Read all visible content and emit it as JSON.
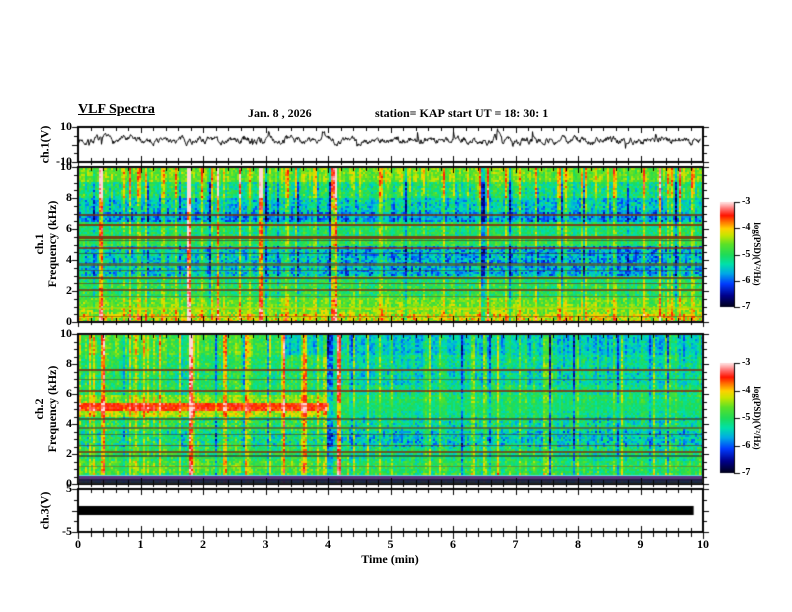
{
  "title": "VLF Spectra",
  "header": {
    "date": "Jan. 8 , 2026",
    "station": "station= KAP",
    "start_ut": "start UT =   18: 30: 1"
  },
  "axes": {
    "x": {
      "label": "Time (min)",
      "min": 0,
      "max": 10,
      "tick_labels": [
        "0",
        "1",
        "2",
        "3",
        "4",
        "5",
        "6",
        "7",
        "8",
        "9",
        "10"
      ],
      "minor_step": 0.2
    }
  },
  "panels": {
    "wave": {
      "ylabel": "ch.1(V)",
      "ymin": -10,
      "ymax": 10,
      "tick_values": [
        10,
        -10
      ],
      "tick_labels": [
        "10",
        "-10"
      ]
    },
    "sp1": {
      "ylabel1": "ch.1",
      "ylabel2": "Frequency (kHz)",
      "ymin": 0,
      "ymax": 10,
      "tick_values": [
        10,
        8,
        6,
        4,
        2,
        0
      ],
      "tick_labels": [
        "10",
        "8",
        "6",
        "4",
        "2",
        "0"
      ]
    },
    "sp2": {
      "ylabel1": "ch.2",
      "ylabel2": "Frequency (kHz)",
      "ymin": 0,
      "ymax": 10,
      "tick_values": [
        10,
        8,
        6,
        4,
        2,
        0
      ],
      "tick_labels": [
        "10",
        "8",
        "6",
        "4",
        "2",
        "0"
      ]
    },
    "ch3": {
      "ylabel": "ch.3(V)",
      "ymin": -5,
      "ymax": 5,
      "tick_values": [
        5,
        -5
      ],
      "tick_labels": [
        "5",
        "-5"
      ]
    }
  },
  "colorbar": {
    "label": "log(PSD)(V²/Hz)",
    "tick_labels": [
      "-3",
      "-4",
      "-5",
      "-6",
      "-7"
    ],
    "vmax": -3,
    "vmin": -7
  },
  "colormap": [
    [
      -7.0,
      "#000014"
    ],
    [
      -6.55,
      "#00008c"
    ],
    [
      -6.1,
      "#003cff"
    ],
    [
      -5.7,
      "#00aae6"
    ],
    [
      -5.35,
      "#00e1aa"
    ],
    [
      -5.0,
      "#1edc5a"
    ],
    [
      -4.6,
      "#5ae128"
    ],
    [
      -4.25,
      "#c8e600"
    ],
    [
      -4.0,
      "#ffd200"
    ],
    [
      -3.75,
      "#ff7800"
    ],
    [
      -3.5,
      "#ff1400"
    ],
    [
      -3.25,
      "#ff6e6e"
    ],
    [
      -3.0,
      "#ffe1e1"
    ]
  ],
  "chart_data": [
    {
      "type": "line",
      "name": "ch1_voltage_waveform",
      "xlabel": "Time (min)",
      "xlim": [
        0,
        10
      ],
      "ylim": [
        -10,
        10
      ],
      "description": "Noisy broadband voltage trace, mean near +2.4 V, excursions roughly -2 to +8 V",
      "gen": {
        "mean": 2.4,
        "noise": 1.7,
        "spike_prob": 0.025,
        "seed": 7
      }
    },
    {
      "type": "heatmap",
      "name": "ch1_spectrogram",
      "xlim": [
        0,
        10
      ],
      "ylim": [
        0,
        10
      ],
      "zlim": [
        -7,
        -3
      ],
      "ylabel": "Frequency (kHz)",
      "zlabel": "log(PSD)(V²/Hz)",
      "seed": 11,
      "bands": [
        {
          "f0": 9.1,
          "f1": 10.0,
          "b": -4.55,
          "cj": 0.28,
          "cs": 1.1
        },
        {
          "f0": 8.0,
          "f1": 9.1,
          "b": -5.05,
          "cj": 0.4,
          "cs": 1.5
        },
        {
          "f0": 7.15,
          "f1": 8.0,
          "b": -5.45,
          "cj": 0.45,
          "cs": 1.2
        },
        {
          "f0": 6.45,
          "f1": 7.15,
          "b": -5.8,
          "cj": 0.45,
          "cs": 1.0
        },
        {
          "f0": 5.6,
          "f1": 6.45,
          "b": -5.05,
          "cj": 0.35,
          "cs": 0.9
        },
        {
          "f0": 4.95,
          "f1": 5.6,
          "b": -4.9,
          "cj": 0.3,
          "cs": 0.8
        },
        {
          "f0": 4.0,
          "f1": 4.95,
          "b": -5.45,
          "cj": 0.5,
          "cs": 0.9,
          "b2": -5.7,
          "ts": 3.9
        },
        {
          "f0": 3.0,
          "f1": 4.0,
          "b": -5.5,
          "cj": 0.5,
          "cs": 0.9,
          "b2": -5.7,
          "ts": 3.9
        },
        {
          "f0": 2.4,
          "f1": 3.0,
          "b": -5.05,
          "cj": 0.4,
          "cs": 0.8
        },
        {
          "f0": 1.5,
          "f1": 2.4,
          "b": -4.95,
          "cj": 0.38,
          "cs": 0.8
        },
        {
          "f0": 0.9,
          "f1": 1.5,
          "b": -4.6,
          "cj": 0.33,
          "cs": 0.7
        },
        {
          "f0": 0.5,
          "f1": 0.9,
          "b": -4.45,
          "cj": 0.38,
          "cs": 0.7
        },
        {
          "f0": 0.0,
          "f1": 0.5,
          "b": -4.25,
          "cj": 0.55,
          "cs": 0.8
        }
      ],
      "hlines": [
        {
          "f": 6.95,
          "h": 2,
          "c": "#703818",
          "a": 0.85
        },
        {
          "f": 6.25,
          "h": 2,
          "c": "#8a2808",
          "a": 0.85
        },
        {
          "f": 5.5,
          "h": 3,
          "c": "#7a3410",
          "a": 0.9
        },
        {
          "f": 5.28,
          "h": 1,
          "c": "#45452a",
          "a": 0.7
        },
        {
          "f": 4.78,
          "h": 2,
          "c": "#8a2808",
          "a": 0.8
        },
        {
          "f": 4.42,
          "h": 1,
          "c": "#333333",
          "a": 0.6
        },
        {
          "f": 3.72,
          "h": 3,
          "c": "#5a5a28",
          "a": 0.75
        },
        {
          "f": 3.35,
          "h": 1,
          "c": "#3c3c3c",
          "a": 0.6
        },
        {
          "f": 2.82,
          "h": 2,
          "c": "#6a3010",
          "a": 0.8
        },
        {
          "f": 2.5,
          "h": 1,
          "c": "#703818",
          "a": 0.7
        },
        {
          "f": 2.05,
          "h": 2,
          "c": "#7a3410",
          "a": 0.8
        },
        {
          "f": 1.62,
          "h": 1,
          "c": "#66601f",
          "a": 0.6
        },
        {
          "f": 0.85,
          "h": 2,
          "c": "#b8d800",
          "a": 0.65
        },
        {
          "f": 0.32,
          "h": 1,
          "c": "#8a4808",
          "a": 0.6
        }
      ],
      "streaks": [
        {
          "t": 0.33,
          "w": 2,
          "dv": 1.6
        },
        {
          "t": 1.72,
          "w": 2,
          "dv": 1.8
        },
        {
          "t": 2.87,
          "w": 2,
          "dv": 1.5
        },
        {
          "t": 4.06,
          "w": 2,
          "dv": 1.7
        },
        {
          "t": 9.62,
          "w": 1,
          "dv": 1.2
        },
        {
          "t": 0.95,
          "w": 1,
          "dv": 0.7
        },
        {
          "t": 1.3,
          "w": 1,
          "dv": 0.6
        },
        {
          "t": 2.2,
          "w": 1,
          "dv": 0.7
        },
        {
          "t": 2.55,
          "w": 1,
          "dv": 0.6
        },
        {
          "t": 3.3,
          "w": 1,
          "dv": 0.8
        },
        {
          "t": 3.75,
          "w": 1,
          "dv": 0.6
        },
        {
          "t": 4.5,
          "w": 1,
          "dv": 0.55
        },
        {
          "t": 5.3,
          "w": 1,
          "dv": 0.6
        },
        {
          "t": 6.0,
          "w": 1,
          "dv": 0.5
        },
        {
          "t": 6.55,
          "w": 1,
          "dv": 0.7
        },
        {
          "t": 7.3,
          "w": 1,
          "dv": 0.55
        },
        {
          "t": 8.05,
          "w": 1,
          "dv": 0.6
        },
        {
          "t": 8.6,
          "w": 1,
          "dv": 0.5
        },
        {
          "t": 9.3,
          "w": 1,
          "dv": 0.6
        }
      ]
    },
    {
      "type": "heatmap",
      "name": "ch2_spectrogram",
      "xlim": [
        0,
        10
      ],
      "ylim": [
        0,
        10
      ],
      "zlim": [
        -7,
        -3
      ],
      "ylabel": "Frequency (kHz)",
      "zlabel": "log(PSD)(V²/Hz)",
      "event": {
        "t_end": 4.0,
        "description": "strong red emission band near 5 kHz present from 0 to ~4 min, then stops"
      },
      "seed": 23,
      "bands": [
        {
          "f0": 8.6,
          "f1": 10.0,
          "b": -4.8,
          "cj": 0.3,
          "cs": 1.1,
          "b2": -5.5,
          "ts": 3.3
        },
        {
          "f0": 7.8,
          "f1": 8.6,
          "b": -5.0,
          "cj": 0.35,
          "cs": 1.0,
          "b2": -5.3,
          "ts": 4.0
        },
        {
          "f0": 6.6,
          "f1": 7.8,
          "b": -5.05,
          "cj": 0.4,
          "cs": 1.0,
          "b2": -5.35,
          "ts": 4.0
        },
        {
          "f0": 5.95,
          "f1": 6.6,
          "b": -5.0,
          "cj": 0.35,
          "cs": 0.9,
          "b2": -5.2,
          "ts": 4.0
        },
        {
          "f0": 5.45,
          "f1": 5.95,
          "b": -4.5,
          "cj": 0.3,
          "cs": 0.8,
          "b2": -5.05,
          "ts": 4.0
        },
        {
          "f0": 4.9,
          "f1": 5.45,
          "b": -3.55,
          "cj": 0.2,
          "cs": 0.5,
          "b2": -5.1,
          "ts": 4.0
        },
        {
          "f0": 4.45,
          "f1": 4.9,
          "b": -4.3,
          "cj": 0.3,
          "cs": 0.7,
          "b2": -5.2,
          "ts": 4.0
        },
        {
          "f0": 3.45,
          "f1": 4.45,
          "b": -5.0,
          "cj": 0.45,
          "cs": 0.9,
          "b2": -5.3,
          "ts": 4.0
        },
        {
          "f0": 2.45,
          "f1": 3.45,
          "b": -5.2,
          "cj": 0.5,
          "cs": 0.9,
          "b2": -5.5,
          "ts": 4.0
        },
        {
          "f0": 1.5,
          "f1": 2.45,
          "b": -4.95,
          "cj": 0.4,
          "cs": 0.8,
          "b2": -5.15,
          "ts": 4.0
        },
        {
          "f0": 0.7,
          "f1": 1.5,
          "b": -4.75,
          "cj": 0.35,
          "cs": 0.8,
          "b2": -5.0,
          "ts": 4.0
        },
        {
          "f0": 0.0,
          "f1": 0.7,
          "b": -4.9,
          "cj": 0.5,
          "cs": 0.8
        }
      ],
      "hlines": [
        {
          "f": 7.65,
          "h": 2,
          "c": "#7a3410",
          "a": 0.85
        },
        {
          "f": 7.0,
          "h": 1,
          "c": "#50502a",
          "a": 0.6
        },
        {
          "f": 6.2,
          "h": 2,
          "c": "#8a2808",
          "a": 0.8
        },
        {
          "f": 5.2,
          "h": 2,
          "c": "#ff2800",
          "a": 0.55,
          "tmax": 4.0
        },
        {
          "f": 4.35,
          "h": 2,
          "c": "#3f3f2a",
          "a": 0.7
        },
        {
          "f": 3.7,
          "h": 2,
          "c": "#5a5a28",
          "a": 0.75
        },
        {
          "f": 3.3,
          "h": 1,
          "c": "#3c3c3c",
          "a": 0.6
        },
        {
          "f": 2.6,
          "h": 1,
          "c": "#6a3010",
          "a": 0.6
        },
        {
          "f": 2.1,
          "h": 2,
          "c": "#7a3410",
          "a": 0.8
        },
        {
          "f": 1.8,
          "h": 2,
          "c": "#333333",
          "a": 0.65
        },
        {
          "f": 1.15,
          "h": 1,
          "c": "#7a6a1f",
          "a": 0.6
        },
        {
          "f": 0.5,
          "h": 3,
          "c": "#58e8e8",
          "a": 0.9
        },
        {
          "f": 0.33,
          "h": 5,
          "c": "#5a2878",
          "a": 0.92
        },
        {
          "f": 0.15,
          "h": 5,
          "c": "#1c1c40",
          "a": 0.92
        }
      ],
      "streaks": [
        {
          "t": 0.35,
          "w": 2,
          "dv": 1.6
        },
        {
          "t": 1.75,
          "w": 2,
          "dv": 1.9
        },
        {
          "t": 3.28,
          "w": 1,
          "dv": 1.1
        },
        {
          "t": 3.6,
          "w": 2,
          "dv": 1.4
        },
        {
          "t": 4.15,
          "w": 2,
          "dv": 1.6
        },
        {
          "t": 0.8,
          "w": 1,
          "dv": 0.7
        },
        {
          "t": 1.2,
          "w": 1,
          "dv": 0.6
        },
        {
          "t": 2.3,
          "w": 1,
          "dv": 0.7
        },
        {
          "t": 2.7,
          "w": 1,
          "dv": 0.8
        },
        {
          "t": 3.05,
          "w": 1,
          "dv": 0.7
        },
        {
          "t": 5.0,
          "w": 1,
          "dv": 0.5
        },
        {
          "t": 5.55,
          "w": 1,
          "dv": 0.6
        },
        {
          "t": 6.5,
          "w": 1,
          "dv": 0.8
        },
        {
          "t": 6.9,
          "w": 1,
          "dv": 0.7
        },
        {
          "t": 7.5,
          "w": 1,
          "dv": 0.6
        },
        {
          "t": 8.3,
          "w": 1,
          "dv": 0.5
        },
        {
          "t": 9.0,
          "w": 1,
          "dv": 0.45
        },
        {
          "t": 9.55,
          "w": 1,
          "dv": 0.7
        }
      ]
    },
    {
      "type": "line",
      "name": "ch3_voltage",
      "xlim": [
        0,
        10
      ],
      "ylim": [
        -5,
        5
      ],
      "description": "flat saturated black bar centered on 0 V spanning nearly the whole record",
      "bar": {
        "t0": 0.0,
        "t1": 9.85,
        "v0": -1.05,
        "v1": 1.05
      }
    }
  ]
}
